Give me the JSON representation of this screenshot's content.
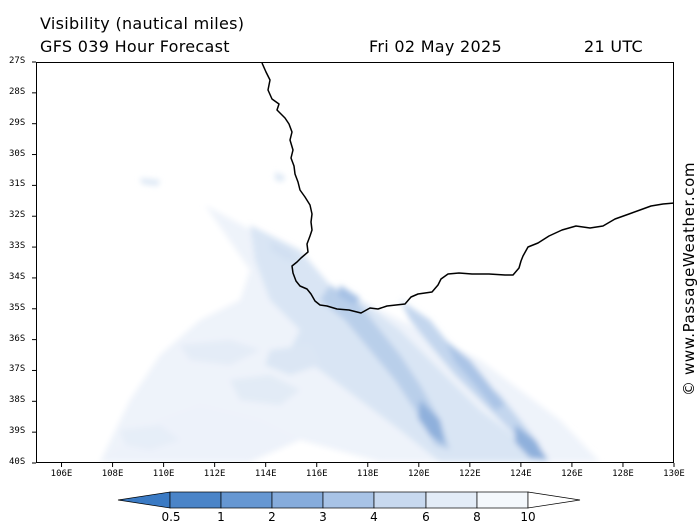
{
  "header": {
    "title": "Visibility (nautical miles)",
    "subtitle": "GFS 039 Hour Forecast",
    "date": "Fri 02 May 2025",
    "time": "21 UTC"
  },
  "copyright": "© www.PassageWeather.com",
  "map": {
    "lat_labels": [
      "27S",
      "28S",
      "29S",
      "30S",
      "31S",
      "32S",
      "33S",
      "34S",
      "35S",
      "36S",
      "37S",
      "38S",
      "39S",
      "40S"
    ],
    "lon_labels": [
      "106E",
      "108E",
      "110E",
      "112E",
      "114E",
      "116E",
      "118E",
      "120E",
      "122E",
      "124E",
      "126E",
      "128E",
      "130E"
    ],
    "lat_range": [
      -27,
      -40
    ],
    "lon_range": [
      105,
      130
    ],
    "coastline_color": "#000000"
  },
  "colorbar": {
    "labels": [
      "0.5",
      "1",
      "2",
      "3",
      "4",
      "6",
      "8",
      "10"
    ],
    "colors": [
      "#3a7ac4",
      "#4a84c8",
      "#6697d2",
      "#86acdc",
      "#a8c3e6",
      "#c8d9ef",
      "#e3ecf7",
      "#f4f8fc"
    ]
  }
}
